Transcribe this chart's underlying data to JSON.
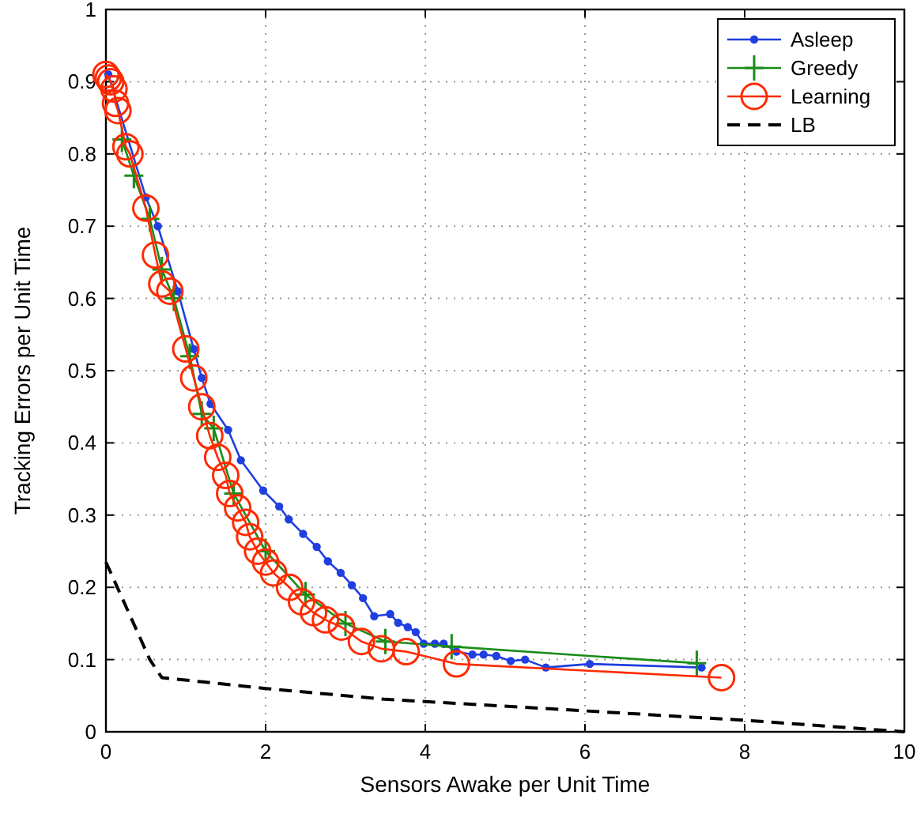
{
  "chart_data": {
    "type": "line",
    "xlabel": "Sensors Awake per Unit Time",
    "ylabel": "Tracking Errors per Unit Time",
    "xlim": [
      0,
      10
    ],
    "ylim": [
      0,
      1
    ],
    "xticks": [
      0,
      2,
      4,
      6,
      8,
      10
    ],
    "yticks": [
      0,
      0.1,
      0.2,
      0.3,
      0.4,
      0.5,
      0.6,
      0.7,
      0.8,
      0.9,
      1
    ],
    "grid": true,
    "legend": "top right",
    "series": [
      {
        "name": "Asleep",
        "color": "#1f3fe0",
        "marker": "dot",
        "line_style": "solid",
        "x": [
          0.03,
          0.5,
          0.65,
          0.9,
          1.1,
          1.2,
          1.31,
          1.53,
          1.69,
          1.97,
          2.17,
          2.29,
          2.47,
          2.64,
          2.78,
          2.94,
          3.08,
          3.22,
          3.36,
          3.56,
          3.66,
          3.78,
          3.88,
          3.98,
          4.12,
          4.23,
          4.39,
          4.59,
          4.73,
          4.89,
          5.07,
          5.25,
          5.51,
          6.06,
          7.46
        ],
        "values": [
          0.91,
          0.74,
          0.7,
          0.61,
          0.53,
          0.49,
          0.454,
          0.418,
          0.376,
          0.334,
          0.312,
          0.294,
          0.274,
          0.256,
          0.236,
          0.22,
          0.203,
          0.185,
          0.16,
          0.163,
          0.151,
          0.145,
          0.138,
          0.122,
          0.122,
          0.122,
          0.111,
          0.107,
          0.107,
          0.105,
          0.098,
          0.1,
          0.089,
          0.094,
          0.089
        ]
      },
      {
        "name": "Greedy",
        "color": "#1a8c1a",
        "marker": "plus",
        "line_style": "solid",
        "x": [
          0.2,
          0.35,
          0.55,
          0.7,
          0.85,
          1.05,
          1.2,
          1.35,
          1.6,
          2.0,
          2.5,
          3.0,
          3.5,
          4.33,
          7.4
        ],
        "values": [
          0.82,
          0.77,
          0.71,
          0.64,
          0.6,
          0.52,
          0.44,
          0.42,
          0.33,
          0.25,
          0.19,
          0.15,
          0.125,
          0.118,
          0.095
        ]
      },
      {
        "name": "Learning",
        "color": "#ff2a00",
        "marker": "circle",
        "line_style": "solid",
        "x": [
          0.0,
          0.03,
          0.06,
          0.1,
          0.12,
          0.15,
          0.25,
          0.3,
          0.5,
          0.62,
          0.7,
          0.8,
          1.0,
          1.1,
          1.2,
          1.3,
          1.4,
          1.5,
          1.55,
          1.65,
          1.75,
          1.8,
          1.9,
          2.0,
          2.1,
          2.3,
          2.45,
          2.6,
          2.75,
          2.95,
          3.2,
          3.45,
          3.76,
          4.39,
          7.71
        ],
        "values": [
          0.91,
          0.905,
          0.9,
          0.89,
          0.87,
          0.86,
          0.81,
          0.8,
          0.725,
          0.66,
          0.62,
          0.61,
          0.53,
          0.49,
          0.45,
          0.41,
          0.38,
          0.355,
          0.33,
          0.31,
          0.29,
          0.27,
          0.25,
          0.235,
          0.22,
          0.2,
          0.18,
          0.165,
          0.155,
          0.145,
          0.125,
          0.115,
          0.111,
          0.094,
          0.075
        ]
      },
      {
        "name": "LB",
        "color": "#000000",
        "marker": "none",
        "line_style": "dashed",
        "x": [
          0,
          0.55,
          0.7,
          2,
          3.5,
          6,
          8,
          10
        ],
        "values": [
          0.235,
          0.1,
          0.075,
          0.06,
          0.045,
          0.029,
          0.016,
          0
        ]
      }
    ]
  }
}
